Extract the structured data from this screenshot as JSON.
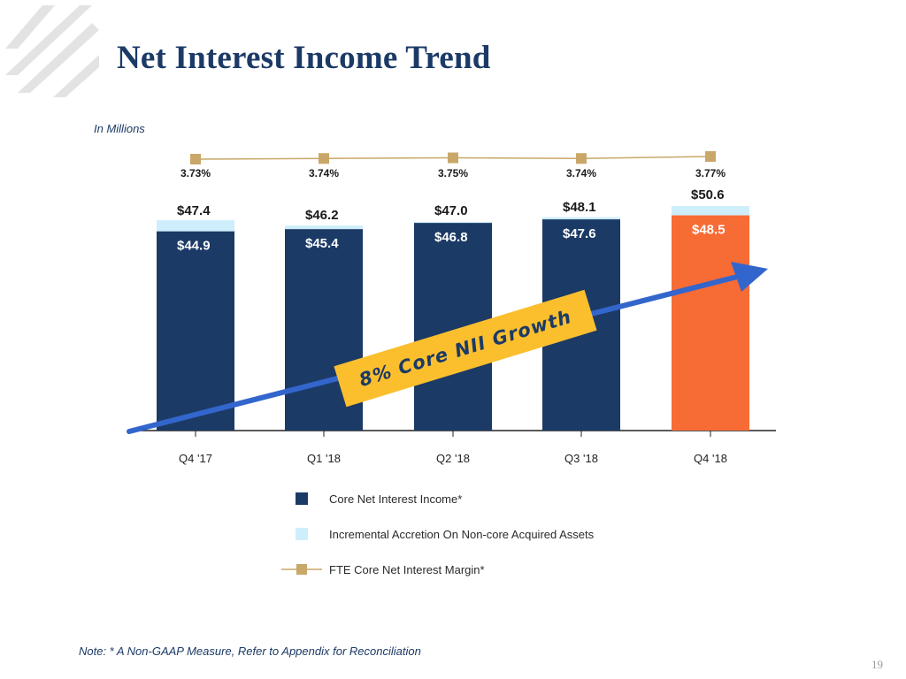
{
  "slide": {
    "title": "Net Interest Income Trend",
    "subtitle": "In Millions",
    "note": "Note: * A Non-GAAP Measure, Refer to Appendix for Reconciliation",
    "page_number": "19",
    "growth_callout": "8% Core NII Growth"
  },
  "colors": {
    "core": "#1b3a66",
    "accretion": "#cfeefc",
    "highlight": "#f76b35",
    "margin_line": "#c9a769",
    "arrow": "#3366cc",
    "callout": "#fbbf2e"
  },
  "chart_data": {
    "type": "bar",
    "stacked": true,
    "categories": [
      "Q4 '17",
      "Q1 '18",
      "Q2 '18",
      "Q3 '18",
      "Q4 '18"
    ],
    "series": [
      {
        "name": "Core Net Interest Income*",
        "values": [
          44.9,
          45.4,
          46.8,
          47.6,
          48.5
        ],
        "labels": [
          "$44.9",
          "$45.4",
          "$46.8",
          "$47.6",
          "$48.5"
        ]
      },
      {
        "name": "Incremental Accretion On Non-core Acquired Assets",
        "values": [
          2.5,
          0.8,
          0.2,
          0.5,
          2.1
        ]
      }
    ],
    "totals": [
      47.4,
      46.2,
      47.0,
      48.1,
      50.6
    ],
    "total_labels": [
      "$47.4",
      "$46.2",
      "$47.0",
      "$48.1",
      "$50.6"
    ],
    "line_series": {
      "name": "FTE Core Net Interest Margin*",
      "values": [
        3.73,
        3.74,
        3.75,
        3.74,
        3.77
      ],
      "labels": [
        "3.73%",
        "3.74%",
        "3.75%",
        "3.74%",
        "3.77%"
      ]
    },
    "highlight_category": "Q4 '18",
    "ylim": [
      0,
      50.6
    ]
  }
}
